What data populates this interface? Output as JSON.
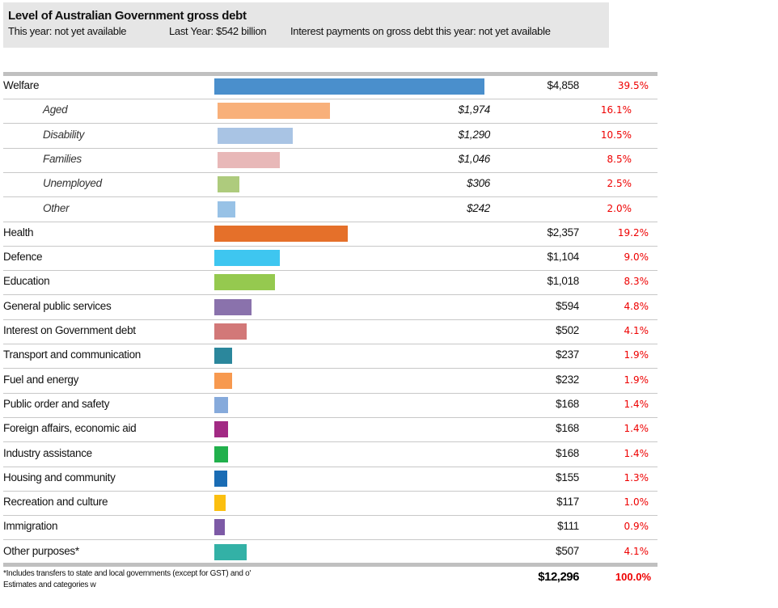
{
  "header": {
    "title": "Level of Australian Government gross debt",
    "this_year": "This year: not yet available",
    "last_year": "Last Year: $542 billion",
    "interest": "Interest payments on gross debt this year: not yet available"
  },
  "chart_data": {
    "type": "bar",
    "orientation": "horizontal",
    "rows": [
      {
        "label": "Welfare",
        "value": 4858,
        "value_label": "$4,858",
        "pct": "39.5%",
        "color": "#4a8fcc",
        "level": 0
      },
      {
        "label": "Aged",
        "value": 1974,
        "value_label": "$1,974",
        "pct": "16.1%",
        "color": "#f8b07a",
        "level": 1
      },
      {
        "label": "Disability",
        "value": 1290,
        "value_label": "$1,290",
        "pct": "10.5%",
        "color": "#a9c4e4",
        "level": 1
      },
      {
        "label": "Families",
        "value": 1046,
        "value_label": "$1,046",
        "pct": "8.5%",
        "color": "#e8b8b8",
        "level": 1
      },
      {
        "label": "Unemployed",
        "value": 306,
        "value_label": "$306",
        "pct": "2.5%",
        "color": "#aecb7d",
        "level": 1
      },
      {
        "label": "Other",
        "value": 242,
        "value_label": "$242",
        "pct": "2.0%",
        "color": "#98c2e6",
        "level": 1
      },
      {
        "label": "Health",
        "value": 2357,
        "value_label": "$2,357",
        "pct": "19.2%",
        "color": "#e5702a",
        "level": 0
      },
      {
        "label": "Defence",
        "value": 1104,
        "value_label": "$1,104",
        "pct": "9.0%",
        "color": "#3ec6f0",
        "level": 0
      },
      {
        "label": "Education",
        "value": 1018,
        "value_label": "$1,018",
        "pct": "8.3%",
        "color": "#95c94f",
        "level": 0
      },
      {
        "label": "General public services",
        "value": 594,
        "value_label": "$594",
        "pct": "4.8%",
        "color": "#8a72ac",
        "level": 0
      },
      {
        "label": "Interest on Government debt",
        "value": 502,
        "value_label": "$502",
        "pct": "4.1%",
        "color": "#d27878",
        "level": 0
      },
      {
        "label": "Transport and communication",
        "value": 237,
        "value_label": "$237",
        "pct": "1.9%",
        "color": "#2b879c",
        "level": 0
      },
      {
        "label": "Fuel and energy",
        "value": 232,
        "value_label": "$232",
        "pct": "1.9%",
        "color": "#f7994f",
        "level": 0
      },
      {
        "label": "Public order and safety",
        "value": 168,
        "value_label": "$168",
        "pct": "1.4%",
        "color": "#86aadb",
        "level": 0
      },
      {
        "label": "Foreign affairs, economic aid",
        "value": 168,
        "value_label": "$168",
        "pct": "1.4%",
        "color": "#a22a84",
        "level": 0
      },
      {
        "label": "Industry assistance",
        "value": 168,
        "value_label": "$168",
        "pct": "1.4%",
        "color": "#21b04c",
        "level": 0
      },
      {
        "label": "Housing and community",
        "value": 155,
        "value_label": "$155",
        "pct": "1.3%",
        "color": "#1a6cb4",
        "level": 0
      },
      {
        "label": "Recreation and culture",
        "value": 117,
        "value_label": "$117",
        "pct": "1.0%",
        "color": "#fbbf10",
        "level": 0
      },
      {
        "label": "Immigration",
        "value": 111,
        "value_label": "$111",
        "pct": "0.9%",
        "color": "#7d5aa6",
        "level": 0
      },
      {
        "label": "Other purposes*",
        "value": 507,
        "value_label": "$507",
        "pct": "4.1%",
        "color": "#33b1a6",
        "level": 0
      }
    ],
    "total": "$12,296",
    "total_pct": "100.0%"
  },
  "footnote": {
    "line1": "*Includes transfers to state and local governments (except for GST) and o'",
    "line2": "Estimates and categories w"
  }
}
